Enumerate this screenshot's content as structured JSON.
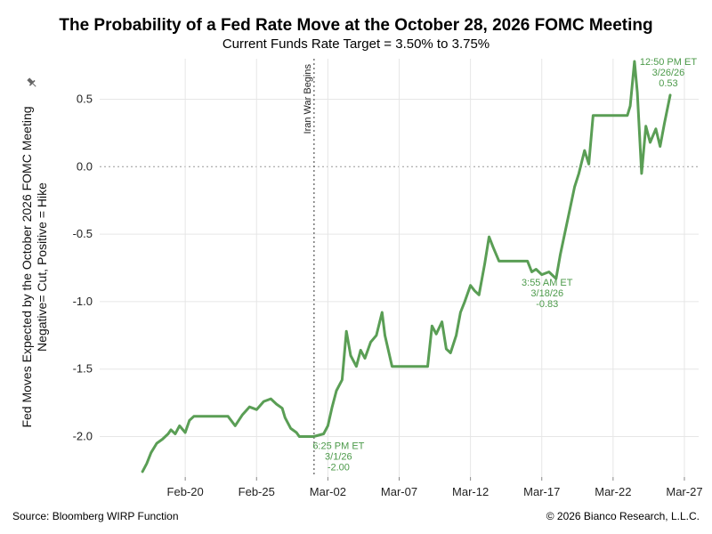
{
  "chart_data": {
    "type": "line",
    "title": "The Probability of a Fed Rate Move at the October 28, 2026 FOMC Meeting",
    "subtitle": "Current Funds Rate Target = 3.50% to 3.75%",
    "ylabel_line1": "Fed Moves Expected by the  October 2026 FOMC Meeting",
    "ylabel_line2": "Negative= Cut, Positive = Hike",
    "ylim": [
      -2.3,
      0.8
    ],
    "xlim": [
      "2026-02-14",
      "2026-03-28"
    ],
    "yticks": [
      0.5,
      0.0,
      -0.5,
      -1.0,
      -1.5,
      -2.0
    ],
    "ytick_labels": [
      "0.5",
      "0.0",
      "-0.5",
      "-1.0",
      "-1.5",
      "-2.0"
    ],
    "xticks": [
      "2026-02-20",
      "2026-02-25",
      "2026-03-02",
      "2026-03-07",
      "2026-03-12",
      "2026-03-17",
      "2026-03-22",
      "2026-03-27"
    ],
    "xtick_labels": [
      "Feb-20",
      "Feb-25",
      "Mar-02",
      "Mar-07",
      "Mar-12",
      "Mar-17",
      "Mar-22",
      "Mar-27"
    ],
    "grid": true,
    "line_color": "#5a9e55",
    "event": {
      "x": "2026-03-01",
      "label": "Iran War Begins"
    },
    "series": [
      {
        "points": [
          [
            "2026-02-17",
            -2.26
          ],
          [
            "2026-02-17.3",
            -2.2
          ],
          [
            "2026-02-17.6",
            -2.12
          ],
          [
            "2026-02-18",
            -2.05
          ],
          [
            "2026-02-18.4",
            -2.02
          ],
          [
            "2026-02-18.8",
            -1.98
          ],
          [
            "2026-02-19",
            -1.95
          ],
          [
            "2026-02-19.3",
            -1.98
          ],
          [
            "2026-02-19.6",
            -1.92
          ],
          [
            "2026-02-20",
            -1.97
          ],
          [
            "2026-02-20.3",
            -1.88
          ],
          [
            "2026-02-20.6",
            -1.85
          ],
          [
            "2026-02-23",
            -1.85
          ],
          [
            "2026-02-23.5",
            -1.92
          ],
          [
            "2026-02-24",
            -1.84
          ],
          [
            "2026-02-24.5",
            -1.78
          ],
          [
            "2026-02-25",
            -1.8
          ],
          [
            "2026-02-25.5",
            -1.74
          ],
          [
            "2026-02-26",
            -1.72
          ],
          [
            "2026-02-26.4",
            -1.76
          ],
          [
            "2026-02-26.8",
            -1.79
          ],
          [
            "2026-02-27",
            -1.86
          ],
          [
            "2026-02-27.4",
            -1.94
          ],
          [
            "2026-02-27.8",
            -1.97
          ],
          [
            "2026-02-28",
            -2.0
          ],
          [
            "2026-03-01",
            -2.0
          ],
          [
            "2026-03-01.7",
            -1.98
          ],
          [
            "2026-03-02",
            -1.92
          ],
          [
            "2026-03-02.3",
            -1.78
          ],
          [
            "2026-03-02.6",
            -1.66
          ],
          [
            "2026-03-03",
            -1.58
          ],
          [
            "2026-03-03.3",
            -1.22
          ],
          [
            "2026-03-03.6",
            -1.4
          ],
          [
            "2026-03-04",
            -1.48
          ],
          [
            "2026-03-04.3",
            -1.36
          ],
          [
            "2026-03-04.6",
            -1.42
          ],
          [
            "2026-03-05",
            -1.3
          ],
          [
            "2026-03-05.4",
            -1.25
          ],
          [
            "2026-03-05.8",
            -1.08
          ],
          [
            "2026-03-06",
            -1.25
          ],
          [
            "2026-03-06.5",
            -1.48
          ],
          [
            "2026-03-07",
            -1.48
          ],
          [
            "2026-03-08",
            -1.48
          ],
          [
            "2026-03-09",
            -1.48
          ],
          [
            "2026-03-09.3",
            -1.18
          ],
          [
            "2026-03-09.6",
            -1.24
          ],
          [
            "2026-03-10",
            -1.15
          ],
          [
            "2026-03-10.3",
            -1.35
          ],
          [
            "2026-03-10.6",
            -1.38
          ],
          [
            "2026-03-11",
            -1.25
          ],
          [
            "2026-03-11.3",
            -1.08
          ],
          [
            "2026-03-11.6",
            -1.0
          ],
          [
            "2026-03-12",
            -0.88
          ],
          [
            "2026-03-12.3",
            -0.92
          ],
          [
            "2026-03-12.6",
            -0.95
          ],
          [
            "2026-03-13",
            -0.72
          ],
          [
            "2026-03-13.3",
            -0.52
          ],
          [
            "2026-03-13.6",
            -0.6
          ],
          [
            "2026-03-14",
            -0.7
          ],
          [
            "2026-03-15",
            -0.7
          ],
          [
            "2026-03-16",
            -0.7
          ],
          [
            "2026-03-16.3",
            -0.78
          ],
          [
            "2026-03-16.6",
            -0.76
          ],
          [
            "2026-03-17",
            -0.8
          ],
          [
            "2026-03-17.5",
            -0.78
          ],
          [
            "2026-03-18",
            -0.83
          ],
          [
            "2026-03-18.3",
            -0.65
          ],
          [
            "2026-03-18.6",
            -0.5
          ],
          [
            "2026-03-19",
            -0.3
          ],
          [
            "2026-03-19.3",
            -0.15
          ],
          [
            "2026-03-19.6",
            -0.05
          ],
          [
            "2026-03-20",
            0.12
          ],
          [
            "2026-03-20.3",
            0.02
          ],
          [
            "2026-03-20.6",
            0.38
          ],
          [
            "2026-03-21",
            0.38
          ],
          [
            "2026-03-22",
            0.38
          ],
          [
            "2026-03-23",
            0.38
          ],
          [
            "2026-03-23.2",
            0.45
          ],
          [
            "2026-03-23.5",
            0.78
          ],
          [
            "2026-03-23.7",
            0.55
          ],
          [
            "2026-03-24",
            -0.05
          ],
          [
            "2026-03-24.3",
            0.3
          ],
          [
            "2026-03-24.6",
            0.18
          ],
          [
            "2026-03-25",
            0.28
          ],
          [
            "2026-03-25.3",
            0.15
          ],
          [
            "2026-03-25.6",
            0.32
          ],
          [
            "2026-03-26",
            0.53
          ]
        ]
      }
    ],
    "annotations": [
      {
        "x": "2026-03-01",
        "y": -2.0,
        "lines": [
          "6:25 PM ET",
          "3/1/26",
          "-2.00"
        ]
      },
      {
        "x": "2026-03-18",
        "y": -0.83,
        "lines": [
          "3:55 AM ET",
          "3/18/26",
          "-0.83"
        ]
      },
      {
        "x": "2026-03-26",
        "y": 0.53,
        "lines": [
          "12:50 PM ET",
          "3/26/26",
          "0.53"
        ]
      }
    ]
  },
  "footer": {
    "source": "Source: Bloomberg WIRP Function",
    "copyright": "© 2026 Bianco Research, L.L.C."
  },
  "icons": {
    "pin": "pin-icon"
  }
}
